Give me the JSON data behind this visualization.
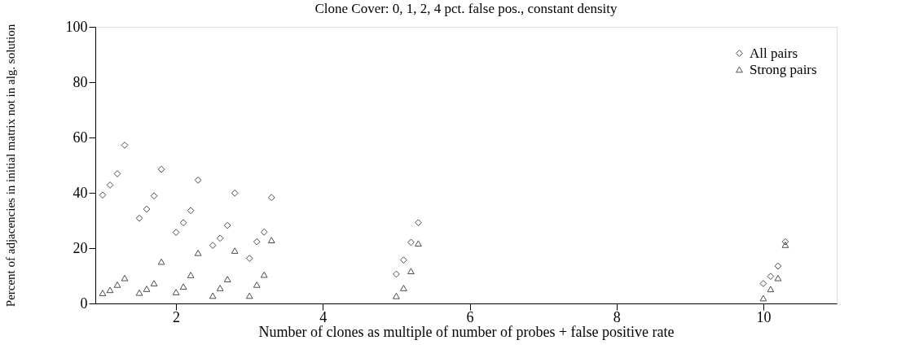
{
  "chart_data": {
    "type": "scatter",
    "title": "Clone Cover: 0, 1, 2, 4 pct. false pos., constant density",
    "xlabel": "Number of clones as multiple of number of probes + false positive  rate",
    "ylabel": "Percent of adjacencies in initial matrix not in alg. solution",
    "x": [
      1.0,
      1.1,
      1.2,
      1.3,
      1.5,
      1.6,
      1.7,
      1.8,
      2.0,
      2.1,
      2.2,
      2.3,
      2.5,
      2.6,
      2.7,
      2.8,
      3.0,
      3.1,
      3.2,
      3.3,
      5.0,
      5.1,
      5.2,
      5.3,
      10.0,
      10.1,
      10.2,
      10.3
    ],
    "series": [
      {
        "name": "All pairs",
        "color": "#000000",
        "marker": "diamond",
        "values": [
          39.2,
          42.8,
          46.9,
          57.2,
          30.8,
          34.1,
          38.9,
          48.5,
          25.7,
          29.2,
          33.6,
          44.6,
          21.0,
          23.6,
          28.2,
          39.9,
          16.3,
          22.3,
          25.8,
          38.3,
          10.6,
          15.7,
          22.1,
          29.2,
          7.2,
          9.8,
          13.5,
          22.3
        ]
      },
      {
        "name": "Strong pairs",
        "color": "#000000",
        "marker": "triangle",
        "values": [
          3.8,
          4.9,
          6.8,
          9.2,
          3.9,
          5.3,
          7.3,
          15.1,
          4.1,
          6.1,
          10.3,
          18.3,
          2.8,
          5.6,
          8.8,
          19.1,
          2.8,
          6.8,
          10.4,
          22.9,
          2.7,
          5.6,
          11.7,
          21.7,
          1.9,
          5.2,
          9.2,
          21.2
        ]
      }
    ],
    "xlim": [
      0.9,
      11
    ],
    "xticks": [
      2,
      4,
      6,
      8,
      10
    ],
    "ylim": [
      0,
      100
    ],
    "yticks": [
      0,
      20,
      40,
      60,
      80,
      100
    ],
    "grid": false,
    "legend": "top right"
  }
}
